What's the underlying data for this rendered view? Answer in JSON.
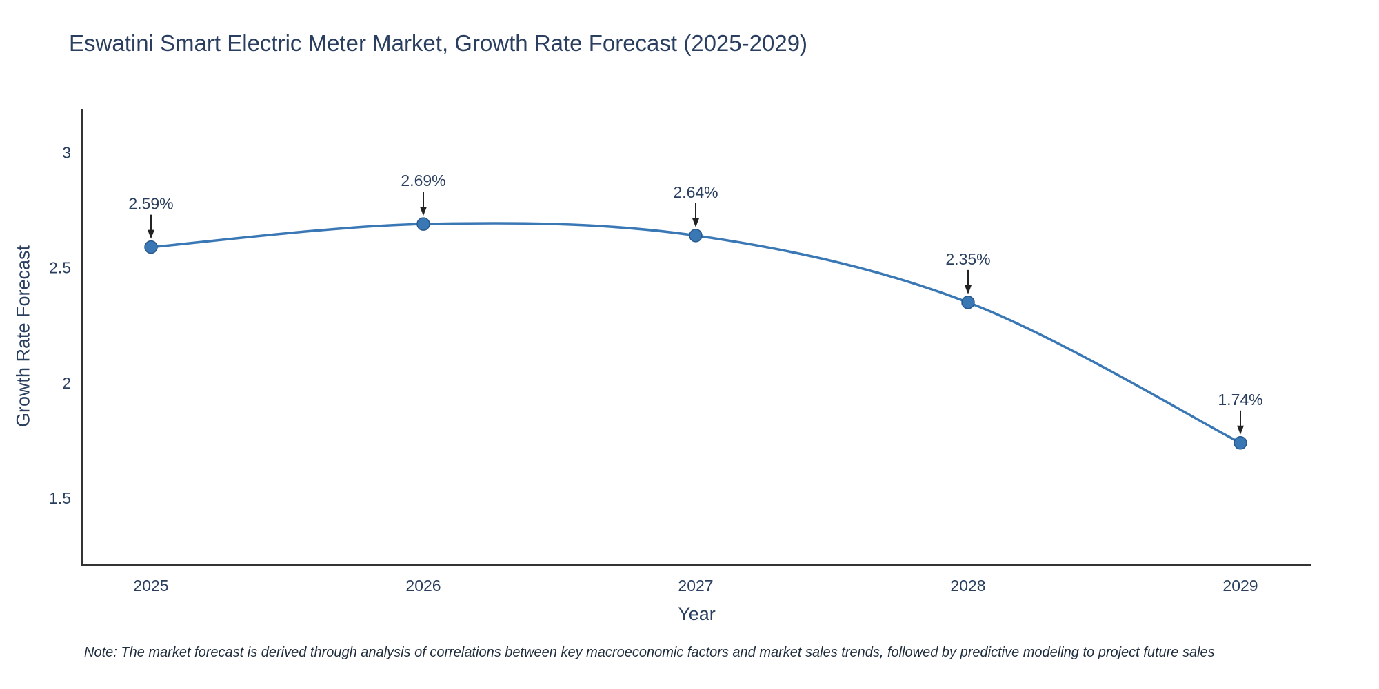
{
  "title": "Eswatini Smart Electric Meter Market, Growth Rate Forecast (2025-2029)",
  "footnote": "Note: The market forecast is derived through analysis of correlations between key macroeconomic factors and market sales trends, followed by predictive modeling to project future sales",
  "chart_data": {
    "type": "line",
    "title": "Eswatini Smart Electric Meter Market, Growth Rate Forecast (2025-2029)",
    "x": [
      2025,
      2026,
      2027,
      2028,
      2029
    ],
    "y": [
      2.59,
      2.69,
      2.64,
      2.35,
      1.74
    ],
    "labels": [
      "2.59%",
      "2.69%",
      "2.64%",
      "2.35%",
      "1.74%"
    ],
    "xlabel": "Year",
    "ylabel": "Growth Rate Forecast",
    "yticks": [
      1.5,
      2,
      2.5,
      3
    ],
    "ylim": [
      1.21,
      3.19
    ],
    "line_shape": "spline",
    "grid": false,
    "legend_position": "none",
    "line_color": "#3a77b5",
    "marker_color": "#3a77b5",
    "marker_edge_color": "#27598c",
    "text_color": "#2a3f5f",
    "axis_color": "#333333",
    "arrow_color": "#222222"
  }
}
